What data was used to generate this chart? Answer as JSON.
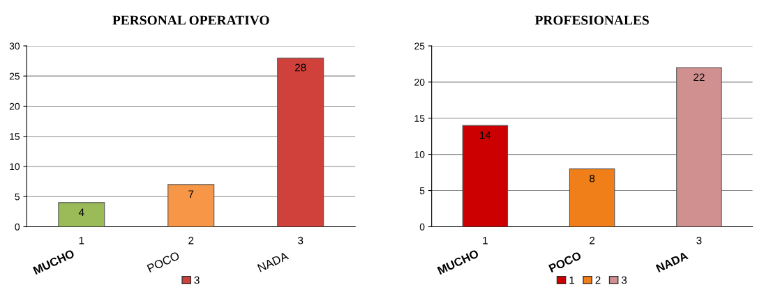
{
  "chart_data": [
    {
      "type": "bar",
      "title": "PERSONAL OPERATIVO",
      "categories": [
        "1",
        "2",
        "3"
      ],
      "ylim": [
        0,
        30
      ],
      "yticks": [
        0,
        5,
        10,
        15,
        20,
        25,
        30
      ],
      "grid": "y",
      "legend": "bottom",
      "data_labels": true,
      "annotations": [
        "MUCHO",
        "POCO",
        "NADA"
      ],
      "series": [
        {
          "color": "#9bbb59",
          "values": [
            4,
            null,
            null
          ]
        },
        {
          "color": "#f79646",
          "values": [
            null,
            7,
            null
          ]
        },
        {
          "name": "3",
          "color": "#d0413c",
          "values": [
            null,
            null,
            28
          ]
        }
      ]
    },
    {
      "type": "bar",
      "title": "PROFESIONALES",
      "categories": [
        "1",
        "2",
        "3"
      ],
      "ylim": [
        0,
        25
      ],
      "yticks": [
        0,
        5,
        10,
        15,
        20,
        25
      ],
      "grid": "y",
      "legend": "bottom",
      "data_labels": true,
      "annotations": [
        "MUCHO",
        "POCO",
        "NADA"
      ],
      "series": [
        {
          "name": "1",
          "color": "#cc0000",
          "values": [
            14,
            null,
            null
          ]
        },
        {
          "name": "2",
          "color": "#f07f1a",
          "values": [
            null,
            8,
            null
          ]
        },
        {
          "name": "3",
          "color": "#d09090",
          "values": [
            null,
            null,
            22
          ]
        }
      ]
    }
  ]
}
